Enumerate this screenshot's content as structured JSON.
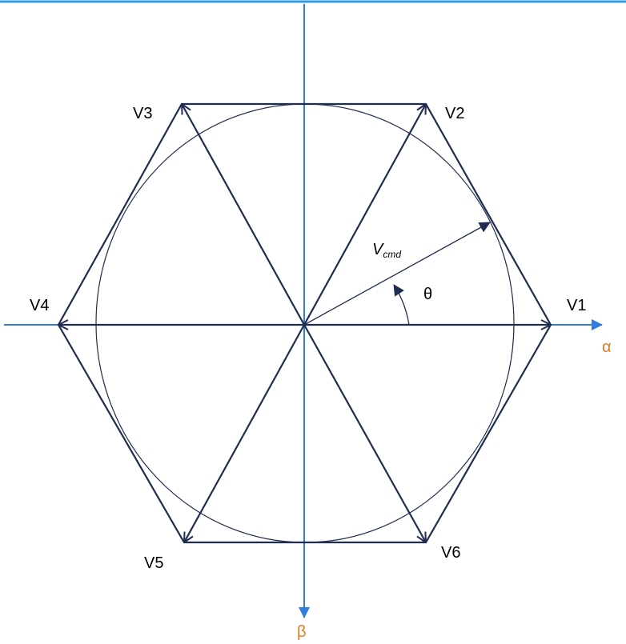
{
  "vectors": {
    "v1": "V1",
    "v2": "V2",
    "v3": "V3",
    "v4": "V4",
    "v5": "V5",
    "v6": "V6"
  },
  "labels": {
    "v_cmd": "V",
    "v_cmd_sub": "cmd",
    "theta": "θ"
  },
  "axes": {
    "alpha": "α",
    "beta": "β"
  }
}
